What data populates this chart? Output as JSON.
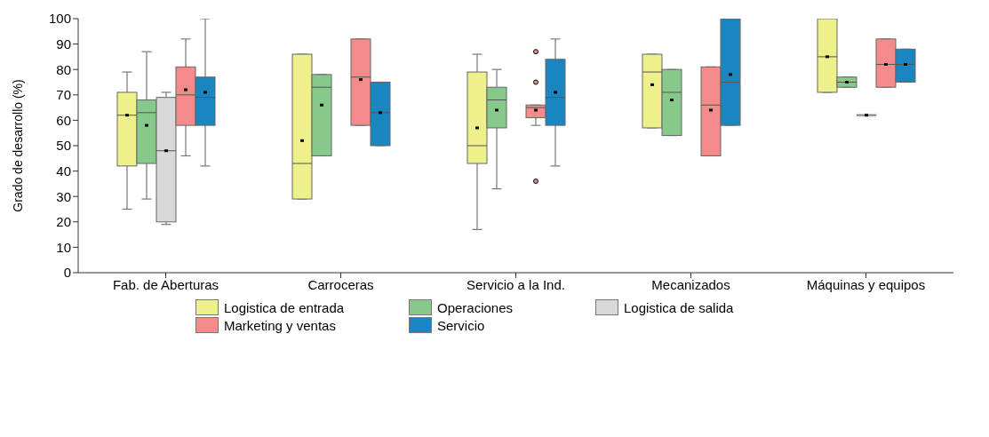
{
  "chart_data": {
    "type": "box",
    "ylabel": "Grado de desarrollo (%)",
    "categories": [
      "Fab. de Aberturas",
      "Carroceras",
      "Servicio a la Ind.",
      "Mecanizados",
      "Máquinas y equipos"
    ],
    "ylim": [
      0,
      100
    ],
    "yticks": [
      0,
      10,
      20,
      30,
      40,
      50,
      60,
      70,
      80,
      90,
      100
    ],
    "legend": "bottom",
    "series": [
      {
        "name": "Logistica de entrada",
        "color": "#eef08c",
        "boxes": [
          {
            "low": 25,
            "q1": 42,
            "median": 62,
            "q3": 71,
            "high": 79,
            "mean": 62
          },
          {
            "low": 29,
            "q1": 29,
            "median": 43,
            "q3": 86,
            "high": 86,
            "mean": 52
          },
          {
            "low": 17,
            "q1": 43,
            "median": 50,
            "q3": 79,
            "high": 86,
            "mean": 57
          },
          {
            "low": 57,
            "q1": 57,
            "median": 79,
            "q3": 86,
            "high": 86,
            "mean": 74
          },
          {
            "low": 71,
            "q1": 71,
            "median": 85,
            "q3": 100,
            "high": 100,
            "mean": 85
          }
        ]
      },
      {
        "name": "Operaciones",
        "color": "#86c98a",
        "boxes": [
          {
            "low": 29,
            "q1": 43,
            "median": 63,
            "q3": 68,
            "high": 87,
            "mean": 58
          },
          {
            "low": 46,
            "q1": 46,
            "median": 73,
            "q3": 78,
            "high": 78,
            "mean": 66
          },
          {
            "low": 33,
            "q1": 57,
            "median": 68,
            "q3": 73,
            "high": 80,
            "mean": 64
          },
          {
            "low": 54,
            "q1": 54,
            "median": 71,
            "q3": 80,
            "high": 80,
            "mean": 68
          },
          {
            "low": 73,
            "q1": 73,
            "median": 75,
            "q3": 77,
            "high": 77,
            "mean": 75
          }
        ]
      },
      {
        "name": "Logistica de salida",
        "color": "#d9d9d9",
        "boxes": [
          {
            "low": 19,
            "q1": 20,
            "median": 48,
            "q3": 69,
            "high": 71,
            "mean": 48
          },
          null,
          null,
          null,
          {
            "low": 62,
            "q1": 62,
            "median": 62,
            "q3": 62,
            "high": 62,
            "mean": 62
          }
        ]
      },
      {
        "name": "Marketing y ventas",
        "color": "#f28b8a",
        "boxes": [
          {
            "low": 46,
            "q1": 58,
            "median": 70,
            "q3": 81,
            "high": 92,
            "mean": 72
          },
          {
            "low": 58,
            "q1": 58,
            "median": 77,
            "q3": 92,
            "high": 92,
            "mean": 76
          },
          {
            "low": 58,
            "q1": 61,
            "median": 65,
            "q3": 66,
            "high": 66,
            "mean": 64,
            "outliers": [
              87,
              75,
              36
            ]
          },
          {
            "low": 46,
            "q1": 46,
            "median": 66,
            "q3": 81,
            "high": 81,
            "mean": 64
          },
          {
            "low": 73,
            "q1": 73,
            "median": 82,
            "q3": 92,
            "high": 92,
            "mean": 82
          }
        ]
      },
      {
        "name": "Servicio",
        "color": "#1a86c0",
        "boxes": [
          {
            "low": 42,
            "q1": 58,
            "median": 69,
            "q3": 77,
            "high": 100,
            "mean": 71
          },
          {
            "low": 50,
            "q1": 50,
            "median": 63,
            "q3": 75,
            "high": 75,
            "mean": 63
          },
          {
            "low": 42,
            "q1": 58,
            "median": 69,
            "q3": 84,
            "high": 92,
            "mean": 71
          },
          {
            "low": 58,
            "q1": 58,
            "median": 75,
            "q3": 100,
            "high": 100,
            "mean": 78
          },
          {
            "low": 75,
            "q1": 75,
            "median": 82,
            "q3": 88,
            "high": 88,
            "mean": 82
          }
        ]
      }
    ]
  }
}
